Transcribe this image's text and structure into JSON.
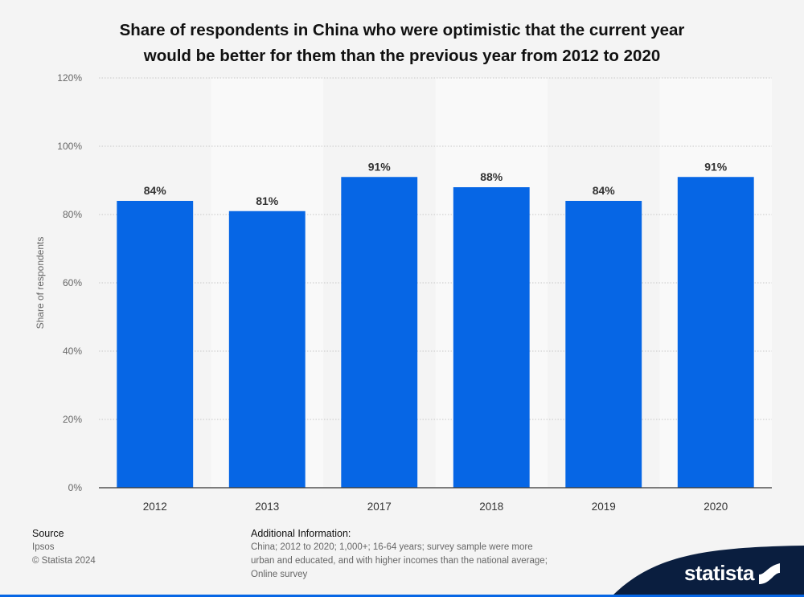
{
  "title_lines": [
    "Share of respondents in China who were optimistic that the current year",
    "would be better for them than the previous year from 2012 to 2020"
  ],
  "chart_data": {
    "type": "bar",
    "categories": [
      "2012",
      "2013",
      "2017",
      "2018",
      "2019",
      "2020"
    ],
    "values": [
      84,
      81,
      91,
      88,
      84,
      91
    ],
    "data_labels": [
      "84%",
      "81%",
      "91%",
      "88%",
      "84%",
      "91%"
    ],
    "ylabel": "Share of respondents",
    "ylim": [
      0,
      120
    ],
    "yticks": [
      0,
      20,
      40,
      60,
      80,
      100,
      120
    ],
    "ytick_labels": [
      "0%",
      "20%",
      "40%",
      "60%",
      "80%",
      "100%",
      "120%"
    ],
    "grid": true,
    "bar_color": "#0666e5"
  },
  "footer": {
    "source_heading": "Source",
    "source_lines": [
      "Ipsos",
      "© Statista 2024"
    ],
    "additional_heading": "Additional Information:",
    "additional_lines": [
      "China; 2012 to 2020; 1,000+; 16-64 years; survey sample were more",
      "urban and educated, and with higher incomes than the national average;",
      "Online survey"
    ]
  },
  "logo": {
    "text": "statista",
    "icon": "statista-logo-icon",
    "color": "#0a1e3f"
  }
}
